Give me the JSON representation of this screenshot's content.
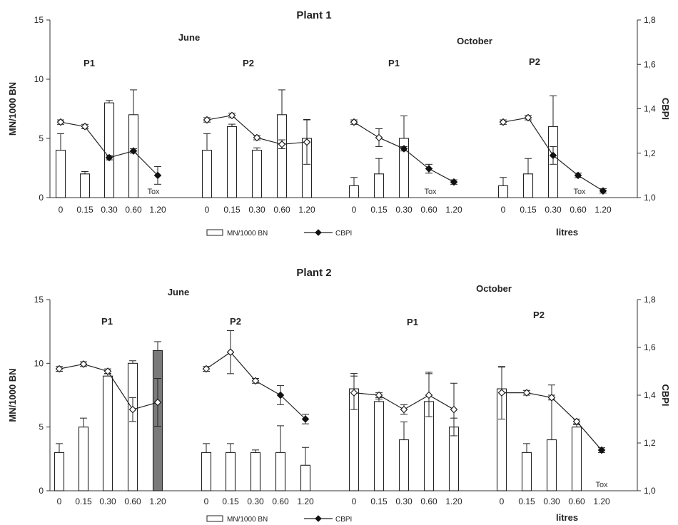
{
  "chart_data": [
    {
      "type": "bar",
      "title": "Plant 1",
      "ylabel": "MN/1000 BN",
      "y2label": "CBPI",
      "ylim": [
        0,
        15
      ],
      "yticks": [
        "0",
        "5",
        "10",
        "15"
      ],
      "y2lim": [
        1.0,
        1.8
      ],
      "y2ticks": [
        "1,0",
        "1,2",
        "1,4",
        "1,6",
        "1,8"
      ],
      "x_unit": "litres",
      "legend": {
        "bar": "MN/1000 BN",
        "line": "CBPI",
        "position": "bottom"
      },
      "months": [
        {
          "label": "June",
          "groups": [
            "P1",
            "P2"
          ]
        },
        {
          "label": "October",
          "groups": [
            "P1",
            "P2"
          ]
        }
      ],
      "groups": [
        {
          "month": "June",
          "name": "P1",
          "categories": [
            "0",
            "0.15",
            "0.30",
            "0.60",
            "1.20"
          ],
          "bars": [
            4,
            2,
            8,
            7,
            null
          ],
          "bar_err": [
            1.4,
            0.2,
            0.2,
            2.1,
            null
          ],
          "cbpi": [
            1.34,
            1.32,
            1.18,
            1.21,
            1.1
          ],
          "cbpi_err": [
            0.01,
            0.01,
            0.01,
            0.01,
            0.04
          ],
          "cbpi_open": [
            true,
            true,
            false,
            false,
            false
          ],
          "tox": "Tox"
        },
        {
          "month": "June",
          "name": "P2",
          "categories": [
            "0",
            "0.15",
            "0.30",
            "0.60",
            "1.20"
          ],
          "bars": [
            4,
            6,
            4,
            7,
            5
          ],
          "bar_err": [
            1.4,
            0.2,
            0.2,
            2.1,
            1.6
          ],
          "cbpi": [
            1.35,
            1.37,
            1.27,
            1.24,
            1.25
          ],
          "cbpi_err": [
            0.01,
            0.01,
            0.01,
            0.02,
            0.1
          ],
          "cbpi_open": [
            true,
            true,
            true,
            true,
            true
          ]
        },
        {
          "month": "October",
          "name": "P1",
          "categories": [
            "0",
            "0.15",
            "0.30",
            "0.60",
            "1.20"
          ],
          "bars": [
            1,
            2,
            5,
            null,
            null
          ],
          "bar_err": [
            0.7,
            1.3,
            1.9,
            null,
            null
          ],
          "cbpi": [
            1.34,
            1.27,
            1.22,
            1.13,
            1.07
          ],
          "cbpi_err": [
            0.01,
            0.04,
            0.01,
            0.02,
            0.01
          ],
          "cbpi_open": [
            true,
            true,
            false,
            false,
            false
          ],
          "tox": "Tox"
        },
        {
          "month": "October",
          "name": "P2",
          "categories": [
            "0",
            "0.15",
            "0.30",
            "0.60",
            "1.20"
          ],
          "bars": [
            1,
            2,
            6,
            null,
            null
          ],
          "bar_err": [
            0.7,
            1.3,
            2.6,
            null,
            null
          ],
          "cbpi": [
            1.34,
            1.36,
            1.19,
            1.1,
            1.03
          ],
          "cbpi_err": [
            0.01,
            0.01,
            0.04,
            0.01,
            0.01
          ],
          "cbpi_open": [
            true,
            true,
            false,
            false,
            false
          ],
          "tox": "Tox"
        }
      ]
    },
    {
      "type": "bar",
      "title": "Plant 2",
      "ylabel": "MN/1000 BN",
      "y2label": "CBPI",
      "ylim": [
        0,
        15
      ],
      "yticks": [
        "0",
        "5",
        "10",
        "15"
      ],
      "y2lim": [
        1.0,
        1.8
      ],
      "y2ticks": [
        "1,0",
        "1,2",
        "1,4",
        "1,6",
        "1,8"
      ],
      "x_unit": "litres",
      "legend": {
        "bar": "MN/1000 BN",
        "line": "CBPI",
        "position": "bottom"
      },
      "months": [
        {
          "label": "June",
          "groups": [
            "P1",
            "P2"
          ]
        },
        {
          "label": "October",
          "groups": [
            "P1",
            "P2"
          ]
        }
      ],
      "groups": [
        {
          "month": "June",
          "name": "P1",
          "categories": [
            "0",
            "0.15",
            "0.30",
            "0.60",
            "1.20"
          ],
          "bars": [
            3,
            5,
            9,
            10,
            11
          ],
          "bar_err": [
            0.7,
            0.7,
            0.2,
            0.2,
            0.7
          ],
          "bar_colors": [
            "#ffffff",
            "#ffffff",
            "#ffffff",
            "#ffffff",
            "#7a7a7a"
          ],
          "cbpi": [
            1.51,
            1.53,
            1.5,
            1.34,
            1.37
          ],
          "cbpi_err": [
            0.01,
            0.01,
            0.01,
            0.05,
            0.1
          ],
          "cbpi_open": [
            true,
            true,
            true,
            true,
            true
          ]
        },
        {
          "month": "June",
          "name": "P2",
          "categories": [
            "0",
            "0.15",
            "0.30",
            "0.60",
            "1.20"
          ],
          "bars": [
            3,
            3,
            3,
            3,
            2
          ],
          "bar_err": [
            0.7,
            0.7,
            0.2,
            2.1,
            1.4
          ],
          "cbpi": [
            1.51,
            1.58,
            1.46,
            1.4,
            1.3
          ],
          "cbpi_err": [
            0.01,
            0.09,
            0.01,
            0.04,
            0.02
          ],
          "cbpi_open": [
            true,
            true,
            true,
            false,
            false
          ]
        },
        {
          "month": "October",
          "name": "P1",
          "categories": [
            "0",
            "0.15",
            "0.30",
            "0.60",
            "1.20"
          ],
          "bars": [
            8,
            7,
            4,
            7,
            5
          ],
          "bar_err": [
            1.2,
            0.2,
            1.4,
            2.3,
            0.7
          ],
          "cbpi": [
            1.41,
            1.4,
            1.34,
            1.4,
            1.34
          ],
          "cbpi_err": [
            0.07,
            0.01,
            0.02,
            0.09,
            0.11
          ],
          "cbpi_open": [
            true,
            true,
            true,
            true,
            true
          ]
        },
        {
          "month": "October",
          "name": "P2",
          "categories": [
            "0",
            "0.15",
            "0.30",
            "0.60",
            "1.20"
          ],
          "bars": [
            8,
            3,
            4,
            5,
            null
          ],
          "bar_err": [
            1.7,
            0.7,
            4.3,
            0.2,
            null
          ],
          "cbpi": [
            1.41,
            1.41,
            1.39,
            1.29,
            1.17
          ],
          "cbpi_err": [
            0.11,
            0.01,
            0.01,
            0.01,
            0.01
          ],
          "cbpi_open": [
            true,
            true,
            true,
            true,
            false
          ],
          "tox": "Tox"
        }
      ]
    }
  ]
}
